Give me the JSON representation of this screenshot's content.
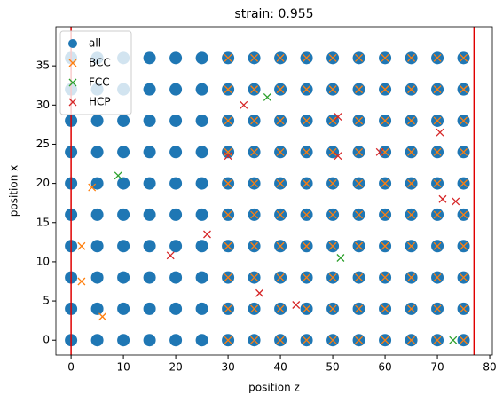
{
  "chart_data": {
    "type": "scatter",
    "title": "strain: 0.955",
    "xlabel": "position z",
    "ylabel": "position x",
    "xlim": [
      -2.9,
      80.5
    ],
    "ylim": [
      -1.9,
      40
    ],
    "xticks": [
      0,
      10,
      20,
      30,
      40,
      50,
      60,
      70,
      80
    ],
    "yticks": [
      0,
      5,
      10,
      15,
      20,
      25,
      30,
      35
    ],
    "legend": "upper left",
    "vlines": {
      "color": "#e00000",
      "values": [
        0,
        77
      ]
    },
    "series": [
      {
        "name": "all",
        "color": "#1f77b4",
        "marker": "o",
        "x": [
          0,
          0,
          0,
          0,
          0,
          0,
          0,
          0,
          0,
          0,
          5,
          5,
          5,
          5,
          5,
          5,
          5,
          5,
          5,
          5,
          10,
          10,
          10,
          10,
          10,
          10,
          10,
          10,
          10,
          10,
          15,
          15,
          15,
          15,
          15,
          15,
          15,
          15,
          15,
          15,
          20,
          20,
          20,
          20,
          20,
          20,
          20,
          20,
          20,
          20,
          25,
          25,
          25,
          25,
          25,
          25,
          25,
          25,
          25,
          25,
          30,
          30,
          30,
          30,
          30,
          30,
          30,
          30,
          30,
          30,
          35,
          35,
          35,
          35,
          35,
          35,
          35,
          35,
          35,
          35,
          40,
          40,
          40,
          40,
          40,
          40,
          40,
          40,
          40,
          40,
          45,
          45,
          45,
          45,
          45,
          45,
          45,
          45,
          45,
          45,
          50,
          50,
          50,
          50,
          50,
          50,
          50,
          50,
          50,
          50,
          55,
          55,
          55,
          55,
          55,
          55,
          55,
          55,
          55,
          55,
          60,
          60,
          60,
          60,
          60,
          60,
          60,
          60,
          60,
          60,
          65,
          65,
          65,
          65,
          65,
          65,
          65,
          65,
          65,
          65,
          70,
          70,
          70,
          70,
          70,
          70,
          70,
          70,
          70,
          70,
          75,
          75,
          75,
          75,
          75,
          75,
          75,
          75,
          75,
          75
        ],
        "values": [
          0,
          4,
          8,
          12,
          16,
          20,
          24,
          28,
          32,
          36,
          0,
          4,
          8,
          12,
          16,
          20,
          24,
          28,
          32,
          36,
          0,
          4,
          8,
          12,
          16,
          20,
          24,
          28,
          32,
          36,
          0,
          4,
          8,
          12,
          16,
          20,
          24,
          28,
          32,
          36,
          0,
          4,
          8,
          12,
          16,
          20,
          24,
          28,
          32,
          36,
          0,
          4,
          8,
          12,
          16,
          20,
          24,
          28,
          32,
          36,
          0,
          4,
          8,
          12,
          16,
          20,
          24,
          28,
          32,
          36,
          0,
          4,
          8,
          12,
          16,
          20,
          24,
          28,
          32,
          36,
          0,
          4,
          8,
          12,
          16,
          20,
          24,
          28,
          32,
          36,
          0,
          4,
          8,
          12,
          16,
          20,
          24,
          28,
          32,
          36,
          0,
          4,
          8,
          12,
          16,
          20,
          24,
          28,
          32,
          36,
          0,
          4,
          8,
          12,
          16,
          20,
          24,
          28,
          32,
          36,
          0,
          4,
          8,
          12,
          16,
          20,
          24,
          28,
          32,
          36,
          0,
          4,
          8,
          12,
          16,
          20,
          24,
          28,
          32,
          36,
          0,
          4,
          8,
          12,
          16,
          20,
          24,
          28,
          32,
          36,
          0,
          4,
          8,
          12,
          16,
          20,
          24,
          28,
          32,
          36
        ]
      },
      {
        "name": "BCC",
        "color": "#ff7f0e",
        "marker": "x",
        "x": [
          30,
          30,
          30,
          30,
          30,
          30,
          30,
          30,
          30,
          30,
          35,
          35,
          35,
          35,
          35,
          35,
          35,
          35,
          35,
          35,
          40,
          40,
          40,
          40,
          40,
          40,
          40,
          40,
          40,
          40,
          45,
          45,
          45,
          45,
          45,
          45,
          45,
          45,
          45,
          45,
          50,
          50,
          50,
          50,
          50,
          50,
          50,
          50,
          50,
          50,
          55,
          55,
          55,
          55,
          55,
          55,
          55,
          55,
          55,
          55,
          60,
          60,
          60,
          60,
          60,
          60,
          60,
          60,
          60,
          60,
          65,
          65,
          65,
          65,
          65,
          65,
          65,
          65,
          65,
          65,
          70,
          70,
          70,
          70,
          70,
          70,
          70,
          70,
          70,
          70,
          75,
          75,
          75,
          75,
          75,
          75,
          75,
          75,
          75,
          75,
          2,
          4,
          2,
          6
        ],
        "values": [
          0,
          4,
          8,
          12,
          16,
          20,
          24,
          28,
          32,
          36,
          0,
          4,
          8,
          12,
          16,
          20,
          24,
          28,
          32,
          36,
          0,
          4,
          8,
          12,
          16,
          20,
          24,
          28,
          32,
          36,
          0,
          4,
          8,
          12,
          16,
          20,
          24,
          28,
          32,
          36,
          0,
          4,
          8,
          12,
          16,
          20,
          24,
          28,
          32,
          36,
          0,
          4,
          8,
          12,
          16,
          20,
          24,
          28,
          32,
          36,
          0,
          4,
          8,
          12,
          16,
          20,
          24,
          28,
          32,
          36,
          0,
          4,
          8,
          12,
          16,
          20,
          24,
          28,
          32,
          36,
          0,
          4,
          8,
          12,
          16,
          20,
          24,
          28,
          32,
          36,
          0,
          4,
          8,
          12,
          16,
          20,
          24,
          28,
          32,
          36,
          7.5,
          19.5,
          12,
          3
        ]
      },
      {
        "name": "FCC",
        "color": "#2ca02c",
        "marker": "x",
        "x": [
          9,
          37.5,
          51.5,
          73
        ],
        "values": [
          21,
          31,
          10.5,
          0
        ]
      },
      {
        "name": "HCP",
        "color": "#d62728",
        "marker": "x",
        "x": [
          19,
          33,
          51,
          70.5,
          71,
          73.5,
          59,
          51,
          26,
          30,
          43,
          36
        ],
        "values": [
          10.8,
          30,
          28.5,
          26.5,
          18,
          17.7,
          24,
          23.5,
          13.5,
          23.5,
          4.5,
          6
        ]
      }
    ]
  }
}
